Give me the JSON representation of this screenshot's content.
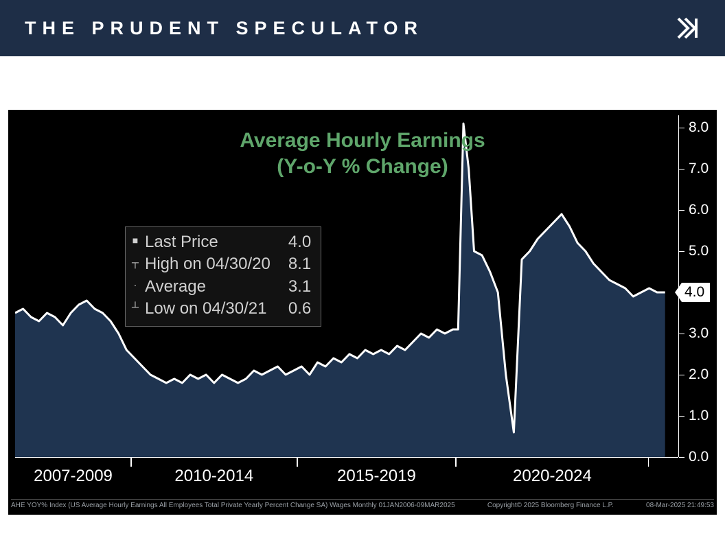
{
  "header": {
    "brand": "THE PRUDENT SPECULATOR"
  },
  "chart": {
    "type": "area",
    "title_line1": "Average Hourly Earnings",
    "title_line2": "(Y-o-Y % Change)",
    "title_color": "#5fa66b",
    "title_fontsize": 30,
    "line_color": "#ffffff",
    "line_width": 3,
    "area_fill": "#1f3450",
    "background": "#000000",
    "y_axis": {
      "side": "right",
      "min": 0.0,
      "max": 8.3,
      "ticks": [
        0.0,
        1.0,
        2.0,
        3.0,
        4.0,
        5.0,
        6.0,
        7.0,
        8.0
      ],
      "tick_color": "#ffffff",
      "tick_fontsize": 21
    },
    "marker": {
      "value": 4.0,
      "label": "4.0",
      "bg": "#ffffff",
      "fg": "#000000"
    },
    "x_axis": {
      "segments": [
        {
          "label": "2007-2009",
          "start": 0.0,
          "end": 0.175
        },
        {
          "label": "2010-2014",
          "start": 0.175,
          "end": 0.425
        },
        {
          "label": "2015-2019",
          "start": 0.425,
          "end": 0.665
        },
        {
          "label": "2020-2024",
          "start": 0.665,
          "end": 0.955
        }
      ],
      "label_color": "#ffffff",
      "label_fontsize": 24
    },
    "legend": {
      "rows": [
        {
          "sym": "■",
          "label": "Last Price",
          "value": "4.0"
        },
        {
          "sym": "┬",
          "label": "High on 04/30/20",
          "value": "8.1"
        },
        {
          "sym": "·",
          "label": "Average",
          "value": "3.1"
        },
        {
          "sym": "┴",
          "label": "Low on 04/30/21",
          "value": "0.6"
        }
      ],
      "text_color": "#d0d0d0",
      "fontsize": 24
    },
    "series": {
      "x": [
        0.0,
        0.012,
        0.024,
        0.036,
        0.048,
        0.06,
        0.072,
        0.084,
        0.096,
        0.108,
        0.12,
        0.132,
        0.144,
        0.156,
        0.168,
        0.18,
        0.192,
        0.204,
        0.216,
        0.228,
        0.24,
        0.252,
        0.264,
        0.276,
        0.288,
        0.3,
        0.312,
        0.324,
        0.336,
        0.348,
        0.36,
        0.372,
        0.384,
        0.396,
        0.408,
        0.42,
        0.432,
        0.444,
        0.456,
        0.468,
        0.48,
        0.492,
        0.504,
        0.516,
        0.528,
        0.54,
        0.552,
        0.564,
        0.576,
        0.588,
        0.6,
        0.612,
        0.624,
        0.636,
        0.648,
        0.66,
        0.668,
        0.676,
        0.684,
        0.692,
        0.704,
        0.716,
        0.728,
        0.74,
        0.752,
        0.764,
        0.776,
        0.788,
        0.8,
        0.812,
        0.824,
        0.836,
        0.848,
        0.86,
        0.872,
        0.884,
        0.896,
        0.908,
        0.92,
        0.932,
        0.944,
        0.956,
        0.968,
        0.98
      ],
      "y": [
        3.5,
        3.6,
        3.4,
        3.3,
        3.5,
        3.4,
        3.2,
        3.5,
        3.7,
        3.8,
        3.6,
        3.5,
        3.3,
        3.0,
        2.6,
        2.4,
        2.2,
        2.0,
        1.9,
        1.8,
        1.9,
        1.8,
        2.0,
        1.9,
        2.0,
        1.8,
        2.0,
        1.9,
        1.8,
        1.9,
        2.1,
        2.0,
        2.1,
        2.2,
        2.0,
        2.1,
        2.2,
        2.0,
        2.3,
        2.2,
        2.4,
        2.3,
        2.5,
        2.4,
        2.6,
        2.5,
        2.6,
        2.5,
        2.7,
        2.6,
        2.8,
        3.0,
        2.9,
        3.1,
        3.0,
        3.1,
        3.1,
        8.1,
        7.0,
        5.0,
        4.9,
        4.5,
        4.0,
        2.0,
        0.6,
        4.8,
        5.0,
        5.3,
        5.5,
        5.7,
        5.9,
        5.6,
        5.2,
        5.0,
        4.7,
        4.5,
        4.3,
        4.2,
        4.1,
        3.9,
        4.0,
        4.1,
        4.0,
        4.0
      ]
    },
    "footer": {
      "left": "AHE YOY% Index (US Average Hourly Earnings All Employees Total Private Yearly Percent Change SA) Wages  Monthly 01JAN2006-09MAR2025",
      "mid": "Copyright© 2025 Bloomberg Finance L.P.",
      "right": "08-Mar-2025 21:49:53",
      "color": "#9aa0a6",
      "fontsize": 10
    }
  }
}
